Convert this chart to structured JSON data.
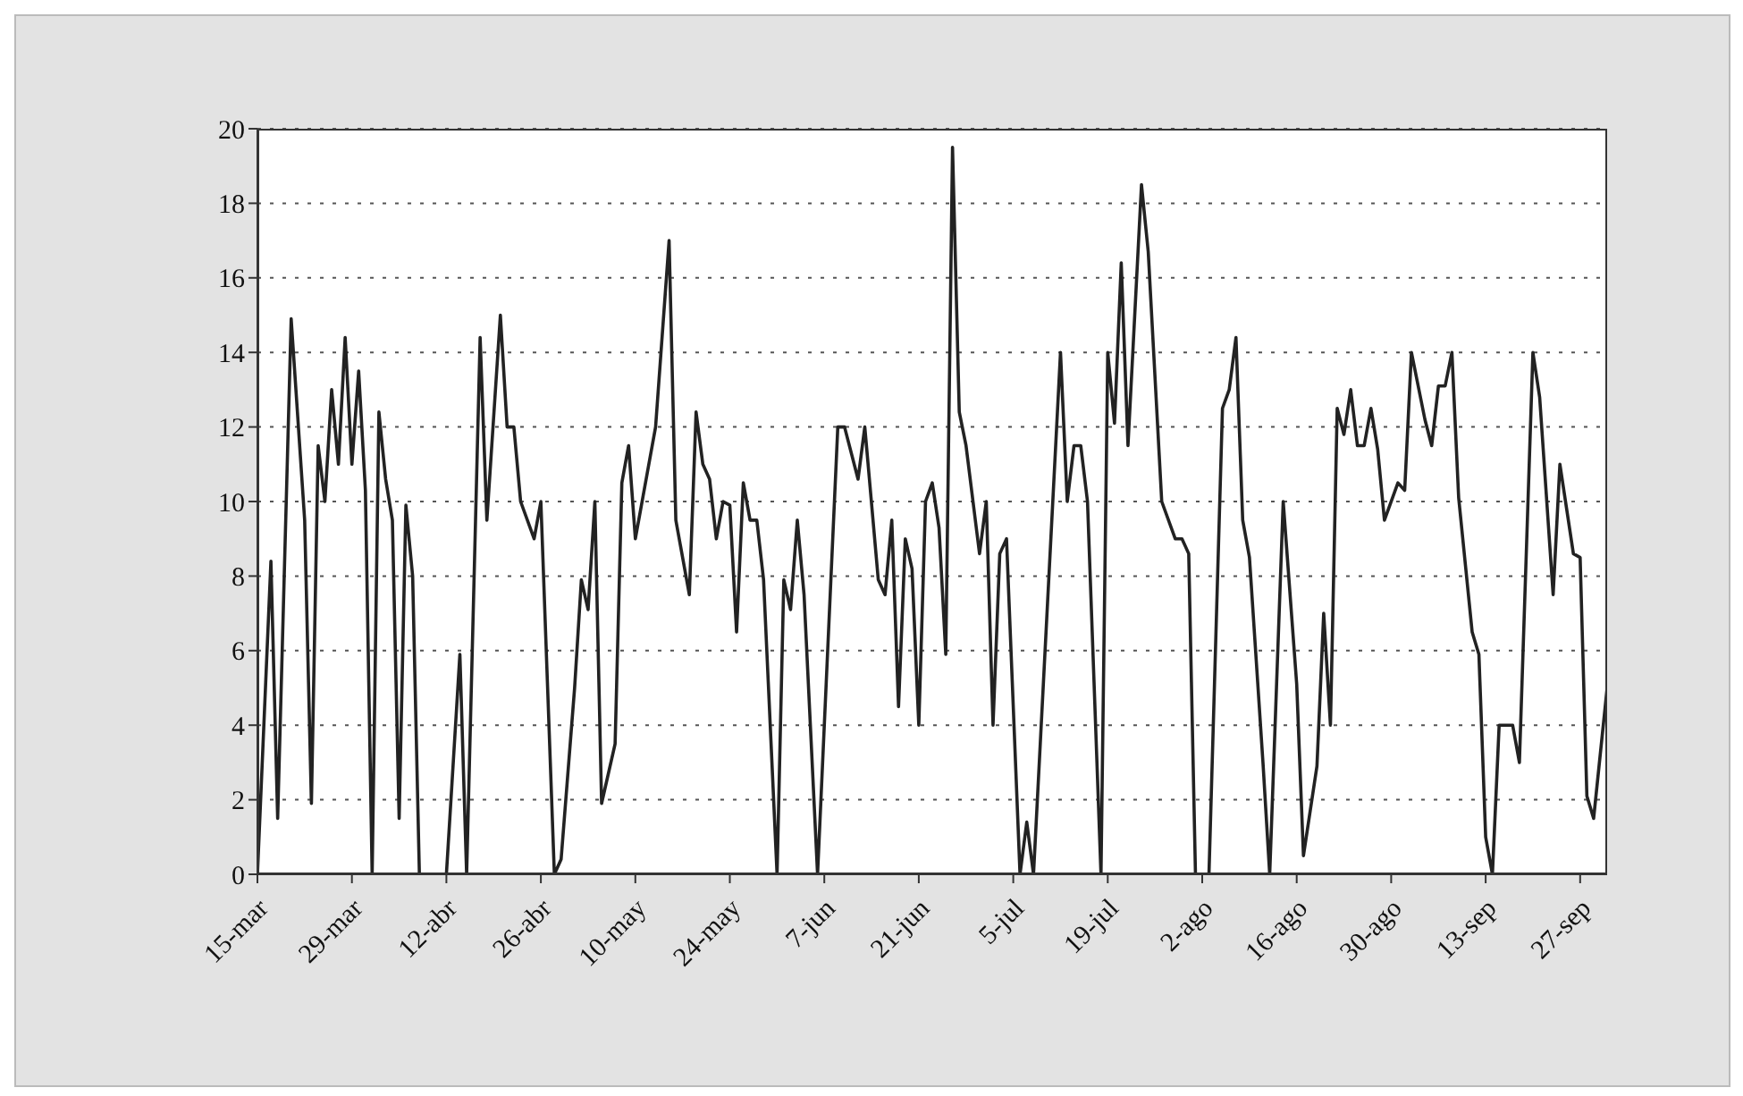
{
  "chart_data": {
    "type": "line",
    "color": "#222222",
    "grid": "y",
    "line_style": "solid",
    "xlim": [
      "--03-15",
      "--10-01"
    ],
    "xticks": [
      {
        "value": "--03-15",
        "label": "15-mar"
      },
      {
        "value": "--03-29",
        "label": "29-mar"
      },
      {
        "value": "--04-12",
        "label": "12-abr"
      },
      {
        "value": "--04-26",
        "label": "26-abr"
      },
      {
        "value": "--05-10",
        "label": "10-may"
      },
      {
        "value": "--05-24",
        "label": "24-may"
      },
      {
        "value": "--06-07",
        "label": "7-jun"
      },
      {
        "value": "--06-21",
        "label": "21-jun"
      },
      {
        "value": "--07-05",
        "label": "5-jul"
      },
      {
        "value": "--07-19",
        "label": "19-jul"
      },
      {
        "value": "--08-02",
        "label": "2-ago"
      },
      {
        "value": "--08-16",
        "label": "16-ago"
      },
      {
        "value": "--08-30",
        "label": "30-ago"
      },
      {
        "value": "--09-13",
        "label": "13-sep"
      },
      {
        "value": "--09-27",
        "label": "27-sep"
      }
    ],
    "ylim": [
      0,
      20
    ],
    "yticks": [
      0,
      2,
      4,
      6,
      8,
      10,
      12,
      14,
      16,
      18,
      20
    ],
    "x": [
      "--03-15",
      "--03-17",
      "--03-18",
      "--03-20",
      "--03-22",
      "--03-23",
      "--03-24",
      "--03-25",
      "--03-26",
      "--03-27",
      "--03-28",
      "--03-29",
      "--03-30",
      "--03-31",
      "--04-01",
      "--04-02",
      "--04-03",
      "--04-04",
      "--04-05",
      "--04-06",
      "--04-07",
      "--04-08",
      "--04-12",
      "--04-14",
      "--04-15",
      "--04-17",
      "--04-18",
      "--04-20",
      "--04-21",
      "--04-22",
      "--04-23",
      "--04-25",
      "--04-26",
      "--04-28",
      "--04-29",
      "--05-01",
      "--05-02",
      "--05-03",
      "--05-04",
      "--05-05",
      "--05-07",
      "--05-08",
      "--05-09",
      "--05-10",
      "--05-13",
      "--05-15",
      "--05-16",
      "--05-18",
      "--05-19",
      "--05-20",
      "--05-21",
      "--05-22",
      "--05-23",
      "--05-24",
      "--05-25",
      "--05-26",
      "--05-27",
      "--05-28",
      "--05-29",
      "--05-31",
      "--06-01",
      "--06-02",
      "--06-03",
      "--06-04",
      "--06-06",
      "--06-09",
      "--06-10",
      "--06-12",
      "--06-13",
      "--06-15",
      "--06-16",
      "--06-17",
      "--06-18",
      "--06-19",
      "--06-20",
      "--06-21",
      "--06-22",
      "--06-23",
      "--06-24",
      "--06-25",
      "--06-26",
      "--06-27",
      "--06-28",
      "--06-30",
      "--07-01",
      "--07-02",
      "--07-03",
      "--07-04",
      "--07-06",
      "--07-07",
      "--07-08",
      "--07-12",
      "--07-13",
      "--07-14",
      "--07-15",
      "--07-16",
      "--07-18",
      "--07-19",
      "--07-20",
      "--07-21",
      "--07-22",
      "--07-24",
      "--07-25",
      "--07-27",
      "--07-29",
      "--07-30",
      "--07-31",
      "--08-01",
      "--08-03",
      "--08-05",
      "--08-06",
      "--08-07",
      "--08-08",
      "--08-09",
      "--08-11",
      "--08-12",
      "--08-14",
      "--08-16",
      "--08-17",
      "--08-19",
      "--08-20",
      "--08-21",
      "--08-22",
      "--08-23",
      "--08-24",
      "--08-25",
      "--08-26",
      "--08-27",
      "--08-28",
      "--08-29",
      "--08-31",
      "--09-01",
      "--09-02",
      "--09-04",
      "--09-05",
      "--09-06",
      "--09-07",
      "--09-08",
      "--09-09",
      "--09-11",
      "--09-12",
      "--09-13",
      "--09-14",
      "--09-15",
      "--09-17",
      "--09-18",
      "--09-20",
      "--09-21",
      "--09-23",
      "--09-24",
      "--09-26",
      "--09-27",
      "--09-28",
      "--09-29",
      "--10-01"
    ],
    "values": [
      0,
      8.4,
      1.5,
      14.9,
      9.5,
      1.9,
      11.5,
      10,
      13,
      11,
      14.4,
      11,
      13.5,
      10.3,
      0,
      12.4,
      10.6,
      9.5,
      1.5,
      9.9,
      8,
      0,
      0,
      5.9,
      0,
      14.4,
      9.5,
      15,
      12,
      12,
      10,
      9,
      10,
      0,
      0.4,
      5,
      7.9,
      7.1,
      10,
      1.9,
      3.5,
      10.5,
      11.5,
      9,
      12,
      17,
      9.5,
      7.5,
      12.4,
      11,
      10.6,
      9,
      10,
      9.9,
      6.5,
      10.5,
      9.5,
      9.5,
      7.9,
      0,
      7.9,
      7.1,
      9.5,
      7.5,
      0,
      12,
      12,
      10.6,
      12,
      7.9,
      7.5,
      9.5,
      4.5,
      9,
      8.2,
      4,
      10,
      10.5,
      9.3,
      5.9,
      19.5,
      12.4,
      11.5,
      8.6,
      10,
      4,
      8.6,
      9,
      0,
      1.4,
      0,
      14,
      10,
      11.5,
      11.5,
      10,
      0,
      14,
      12.1,
      16.4,
      11.5,
      18.5,
      16.7,
      10,
      9,
      9,
      8.6,
      0,
      0,
      12.5,
      13,
      14.4,
      9.5,
      8.5,
      3,
      0,
      10,
      5.1,
      0.5,
      2.9,
      7,
      4,
      12.5,
      11.8,
      13,
      11.5,
      11.5,
      12.5,
      11.4,
      9.5,
      10.5,
      10.3,
      14,
      12.2,
      11.5,
      13.1,
      13.1,
      14,
      10.1,
      6.5,
      5.9,
      1,
      0,
      4,
      4,
      3,
      14,
      12.8,
      7.5,
      11,
      8.6,
      8.5,
      2.1,
      1.5,
      5
    ]
  }
}
